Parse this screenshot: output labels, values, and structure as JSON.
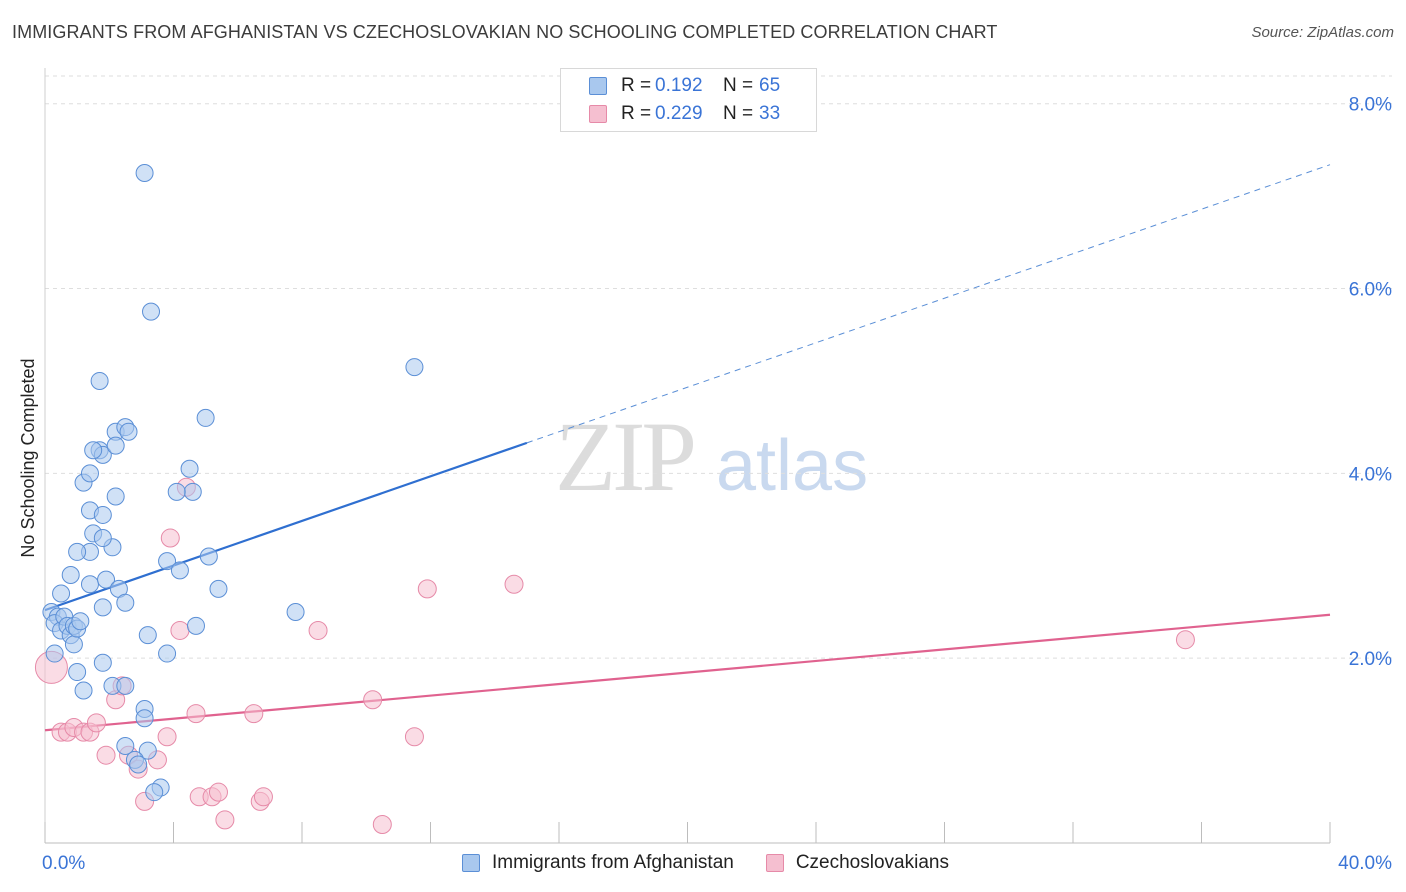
{
  "header": {
    "title": "IMMIGRANTS FROM AFGHANISTAN VS CZECHOSLOVAKIAN NO SCHOOLING COMPLETED CORRELATION CHART",
    "source": "Source: ZipAtlas.com"
  },
  "watermark": {
    "zip": "ZIP",
    "atlas": "atlas"
  },
  "legend": {
    "series1": {
      "r_label": "R =",
      "r_value": "0.192",
      "n_label": "N =",
      "n_value": "65"
    },
    "series2": {
      "r_label": "R =",
      "r_value": "0.229",
      "n_label": "N =",
      "n_value": "33"
    }
  },
  "bottom_legend": {
    "series1": "Immigrants from Afghanistan",
    "series2": "Czechoslovakians"
  },
  "colors": {
    "blue_fill": "#a9c8ee",
    "blue_stroke": "#5b8fd6",
    "blue_line": "#2f6fd0",
    "pink_fill": "#f5bfd0",
    "pink_stroke": "#e68aa8",
    "pink_line": "#e0628f",
    "tick_label": "#3a74d6"
  },
  "chart_data": {
    "type": "scatter",
    "title": "IMMIGRANTS FROM AFGHANISTAN VS CZECHOSLOVAKIAN NO SCHOOLING COMPLETED CORRELATION CHART",
    "xlabel": "",
    "ylabel": "No Schooling Completed",
    "xlim": [
      0,
      40
    ],
    "ylim": [
      0,
      8.3
    ],
    "x_tick_labels": [
      "0.0%",
      "40.0%"
    ],
    "y_ticks": [
      2,
      4,
      6,
      8
    ],
    "y_tick_labels": [
      "2.0%",
      "4.0%",
      "6.0%",
      "8.0%"
    ],
    "x_minor_ticks": [
      0,
      4,
      8,
      12,
      16,
      20,
      24,
      28,
      32,
      36,
      40
    ],
    "grid": true,
    "series": [
      {
        "name": "Immigrants from Afghanistan",
        "color": "#5b8fd6",
        "trend": {
          "x": [
            0,
            15
          ],
          "y": [
            2.52,
            4.33
          ],
          "extended_x": [
            15,
            40
          ],
          "extended_y": [
            4.33,
            7.34
          ]
        },
        "points": [
          [
            0.2,
            2.5
          ],
          [
            0.4,
            2.45
          ],
          [
            0.3,
            2.38
          ],
          [
            0.5,
            2.3
          ],
          [
            0.5,
            2.7
          ],
          [
            0.6,
            2.45
          ],
          [
            0.7,
            2.35
          ],
          [
            0.8,
            2.25
          ],
          [
            0.9,
            2.15
          ],
          [
            0.9,
            2.35
          ],
          [
            1.0,
            2.32
          ],
          [
            1.1,
            2.4
          ],
          [
            0.3,
            2.05
          ],
          [
            1.5,
            3.35
          ],
          [
            1.4,
            3.6
          ],
          [
            1.7,
            4.25
          ],
          [
            1.8,
            4.2
          ],
          [
            2.2,
            4.45
          ],
          [
            2.5,
            4.5
          ],
          [
            2.2,
            4.3
          ],
          [
            1.2,
            3.9
          ],
          [
            1.4,
            4.0
          ],
          [
            1.5,
            4.25
          ],
          [
            1.7,
            5.0
          ],
          [
            3.1,
            7.25
          ],
          [
            3.3,
            5.75
          ],
          [
            1.8,
            3.55
          ],
          [
            2.2,
            3.75
          ],
          [
            2.1,
            3.2
          ],
          [
            1.8,
            3.3
          ],
          [
            1.4,
            3.15
          ],
          [
            1.0,
            3.15
          ],
          [
            0.8,
            2.9
          ],
          [
            1.4,
            2.8
          ],
          [
            1.9,
            2.85
          ],
          [
            2.3,
            2.75
          ],
          [
            2.5,
            2.6
          ],
          [
            1.8,
            2.55
          ],
          [
            2.6,
            4.45
          ],
          [
            3.8,
            3.05
          ],
          [
            4.2,
            2.95
          ],
          [
            4.5,
            4.05
          ],
          [
            4.6,
            3.8
          ],
          [
            5.1,
            3.1
          ],
          [
            5.4,
            2.75
          ],
          [
            5.0,
            4.6
          ],
          [
            4.7,
            2.35
          ],
          [
            3.2,
            2.25
          ],
          [
            3.8,
            2.05
          ],
          [
            1.8,
            1.95
          ],
          [
            1.0,
            1.85
          ],
          [
            1.2,
            1.65
          ],
          [
            2.1,
            1.7
          ],
          [
            2.5,
            1.7
          ],
          [
            3.1,
            1.45
          ],
          [
            3.1,
            1.35
          ],
          [
            2.5,
            1.05
          ],
          [
            3.2,
            1.0
          ],
          [
            2.8,
            0.9
          ],
          [
            2.9,
            0.85
          ],
          [
            3.6,
            0.6
          ],
          [
            3.4,
            0.55
          ],
          [
            11.5,
            5.15
          ],
          [
            7.8,
            2.5
          ],
          [
            4.1,
            3.8
          ]
        ]
      },
      {
        "name": "Czechoslovakians",
        "color": "#e68aa8",
        "trend": {
          "x": [
            0,
            40
          ],
          "y": [
            1.22,
            2.47
          ]
        },
        "points": [
          [
            0.2,
            1.9
          ],
          [
            0.5,
            1.2
          ],
          [
            0.7,
            1.2
          ],
          [
            0.9,
            1.25
          ],
          [
            1.2,
            1.2
          ],
          [
            1.4,
            1.2
          ],
          [
            1.6,
            1.3
          ],
          [
            1.9,
            0.95
          ],
          [
            2.2,
            1.55
          ],
          [
            2.4,
            1.7
          ],
          [
            2.6,
            0.95
          ],
          [
            2.9,
            0.8
          ],
          [
            3.1,
            0.45
          ],
          [
            3.5,
            0.9
          ],
          [
            3.8,
            1.15
          ],
          [
            3.9,
            3.3
          ],
          [
            4.2,
            2.3
          ],
          [
            4.4,
            3.85
          ],
          [
            4.7,
            1.4
          ],
          [
            4.8,
            0.5
          ],
          [
            5.2,
            0.5
          ],
          [
            5.4,
            0.55
          ],
          [
            5.6,
            0.25
          ],
          [
            6.5,
            1.4
          ],
          [
            6.7,
            0.45
          ],
          [
            6.8,
            0.5
          ],
          [
            8.5,
            2.3
          ],
          [
            10.2,
            1.55
          ],
          [
            10.5,
            0.2
          ],
          [
            11.5,
            1.15
          ],
          [
            11.9,
            2.75
          ],
          [
            14.6,
            2.8
          ],
          [
            35.5,
            2.2
          ]
        ]
      }
    ]
  }
}
